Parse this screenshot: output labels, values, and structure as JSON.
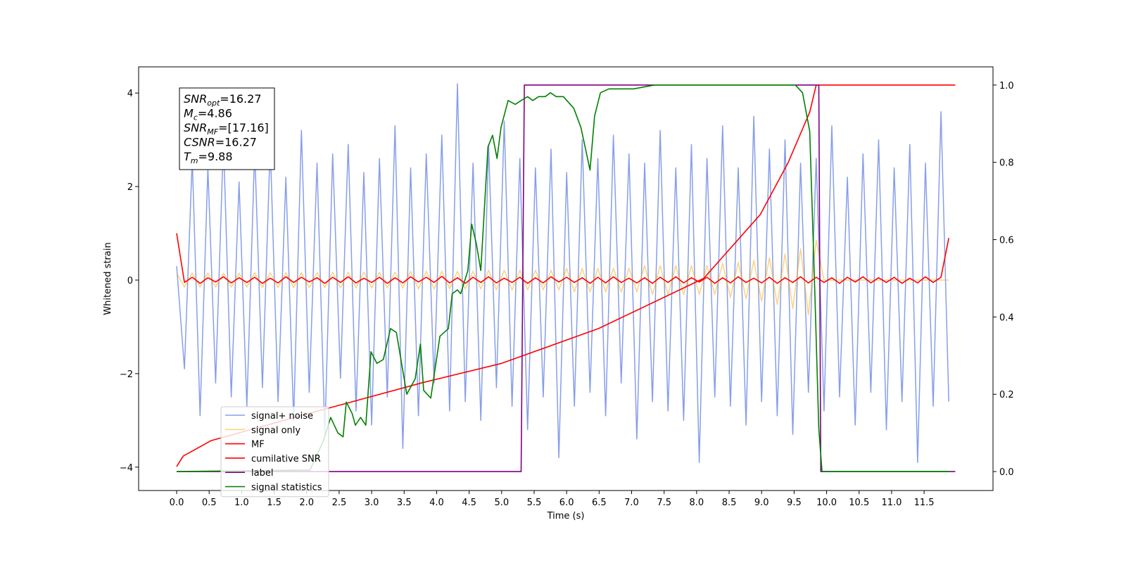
{
  "chart_data": {
    "type": "line",
    "xlabel": "Time (s)",
    "ylabel": "Whitened strain",
    "xlim": [
      -0.585,
      12.56
    ],
    "ylim": [
      -4.5,
      4.56
    ],
    "y2lim": [
      -0.049,
      1.047
    ],
    "xticks": [
      {
        "value": 0,
        "label": "0.0"
      },
      0.5,
      {
        "value": 1,
        "label": "1.0"
      },
      1.5,
      {
        "value": 2,
        "label": "2.0"
      },
      2.5,
      {
        "value": 3,
        "label": "3.0"
      },
      3.5,
      {
        "value": 4,
        "label": "4.0"
      },
      4.5,
      {
        "value": 5,
        "label": "5.0"
      },
      5.5,
      {
        "value": 6,
        "label": "6.0"
      },
      6.5,
      {
        "value": 7,
        "label": "7.0"
      },
      7.5,
      {
        "value": 8,
        "label": "8.0"
      },
      8.5,
      {
        "value": 9,
        "label": "9.0"
      },
      9.5,
      {
        "value": 10,
        "label": "10.0"
      },
      10.5,
      {
        "value": 11,
        "label": "11.0"
      },
      11.5
    ],
    "yticks": [
      {
        "value": -4,
        "label": "−4"
      },
      {
        "value": -2,
        "label": "−2"
      },
      0,
      2,
      4
    ],
    "y2ticks": [
      {
        "value": 0,
        "label": "0.0"
      },
      0.2,
      0.4,
      0.6,
      0.8,
      {
        "value": 1,
        "label": "1.0"
      }
    ],
    "legend_loc": "lower left",
    "annotations": [
      {
        "base": "SNR",
        "sub": "opt",
        "text": "=16.27"
      },
      {
        "base": "M",
        "sub": "c",
        "text": "=4.86"
      },
      {
        "base": "SNR",
        "sub": "MF",
        "text": "=[17.16]"
      },
      {
        "base": "CSNR",
        "sub": null,
        "text": "=16.27"
      },
      {
        "base": "T",
        "sub": "m",
        "text": "=9.88"
      }
    ],
    "x": [
      0,
      0.12,
      0.24,
      0.36,
      0.48,
      0.6,
      0.72,
      0.84,
      0.96,
      1.08,
      1.2,
      1.32,
      1.44,
      1.56,
      1.68,
      1.8,
      1.92,
      2.04,
      2.16,
      2.28,
      2.4,
      2.52,
      2.64,
      2.76,
      2.88,
      3,
      3.12,
      3.24,
      3.36,
      3.48,
      3.6,
      3.72,
      3.84,
      3.96,
      4.08,
      4.2,
      4.32,
      4.44,
      4.56,
      4.68,
      4.8,
      4.92,
      5.04,
      5.16,
      5.28,
      5.4,
      5.52,
      5.64,
      5.76,
      5.88,
      6,
      6.12,
      6.24,
      6.36,
      6.48,
      6.6,
      6.72,
      6.84,
      6.96,
      7.08,
      7.2,
      7.32,
      7.44,
      7.56,
      7.68,
      7.8,
      7.92,
      8.04,
      8.16,
      8.28,
      8.4,
      8.52,
      8.64,
      8.76,
      8.88,
      9,
      9.12,
      9.24,
      9.36,
      9.48,
      9.6,
      9.72,
      9.84,
      9.96,
      10.08,
      10.2,
      10.32,
      10.44,
      10.56,
      10.68,
      10.8,
      10.92,
      11.04,
      11.16,
      11.28,
      11.4,
      11.52,
      11.64,
      11.76,
      11.88
    ],
    "series": [
      {
        "name": "signal+ noise",
        "color": "#7a94e8",
        "values": [
          0.3,
          -1.9,
          2.6,
          -2.9,
          2.4,
          -2.2,
          3.0,
          -2.5,
          2.1,
          -2.7,
          2.8,
          -2.3,
          2.9,
          -2.6,
          2.2,
          -3.0,
          3.2,
          -2.4,
          2.5,
          -3.3,
          2.7,
          -2.1,
          2.9,
          -2.8,
          2.3,
          -3.1,
          2.6,
          -2.5,
          3.3,
          -3.6,
          2.4,
          -2.9,
          2.7,
          -2.2,
          3.1,
          -2.8,
          4.2,
          -2.6,
          2.5,
          -3.0,
          2.9,
          -2.3,
          3.4,
          -2.7,
          2.6,
          -3.2,
          2.4,
          -2.5,
          2.8,
          -3.8,
          2.3,
          -2.7,
          3.0,
          -2.4,
          2.6,
          -2.9,
          3.1,
          -2.2,
          2.7,
          -3.4,
          2.5,
          -2.6,
          3.2,
          -2.8,
          2.4,
          -3.0,
          2.9,
          -3.9,
          2.6,
          -2.5,
          3.3,
          -2.7,
          2.4,
          -3.1,
          3.5,
          -2.6,
          2.8,
          -2.9,
          3.0,
          -3.3,
          2.5,
          -2.4,
          2.6,
          -2.8,
          3.3,
          -2.5,
          2.2,
          -3.1,
          2.7,
          -2.4,
          3.0,
          -3.2,
          2.4,
          -2.6,
          2.9,
          -3.9,
          2.5,
          -2.7,
          3.6,
          -2.6
        ]
      },
      {
        "name": "signal only",
        "color": "#ffa500",
        "values": [
          0.15,
          -0.15,
          0.15,
          -0.15,
          0.15,
          -0.15,
          0.15,
          -0.15,
          0.15,
          -0.15,
          0.16,
          -0.16,
          0.16,
          -0.16,
          0.16,
          -0.16,
          0.16,
          -0.16,
          0.16,
          -0.16,
          0.17,
          -0.17,
          0.17,
          -0.17,
          0.17,
          -0.17,
          0.17,
          -0.17,
          0.17,
          -0.17,
          0.19,
          -0.19,
          0.19,
          -0.19,
          0.19,
          -0.19,
          0.19,
          -0.19,
          0.19,
          -0.19,
          0.21,
          -0.21,
          0.21,
          -0.21,
          0.21,
          -0.21,
          0.21,
          -0.21,
          0.21,
          -0.21,
          0.25,
          -0.25,
          0.25,
          -0.25,
          0.25,
          -0.25,
          0.25,
          -0.25,
          0.25,
          -0.25,
          0.31,
          -0.31,
          0.31,
          -0.31,
          0.31,
          -0.31,
          0.31,
          -0.31,
          0.31,
          -0.31,
          0.36,
          -0.37,
          0.38,
          -0.4,
          0.42,
          -0.45,
          0.48,
          -0.52,
          0.56,
          -0.61,
          0.67,
          -0.74,
          0.85,
          0,
          0,
          0,
          0,
          0,
          0,
          0,
          0,
          0,
          0,
          0,
          0,
          0,
          0,
          0,
          0,
          0
        ]
      },
      {
        "name": "MF",
        "color": "#ff0000",
        "values": [
          1.0,
          -0.05,
          0.06,
          -0.07,
          0.05,
          -0.04,
          0.07,
          -0.06,
          0.05,
          -0.05,
          0.06,
          -0.07,
          0.04,
          -0.06,
          0.07,
          -0.05,
          0.06,
          -0.04,
          0.05,
          -0.07,
          0.06,
          -0.05,
          0.07,
          -0.06,
          0.04,
          -0.05,
          0.06,
          -0.07,
          0.05,
          -0.06,
          0.07,
          -0.04,
          0.06,
          -0.05,
          0.08,
          -0.06,
          0.05,
          -0.07,
          0.06,
          -0.05,
          0.07,
          -0.06,
          0.04,
          -0.05,
          0.06,
          -0.07,
          0.05,
          -0.06,
          0.07,
          -0.04,
          0.06,
          -0.05,
          0.05,
          -0.07,
          0.06,
          -0.06,
          0.07,
          -0.05,
          0.04,
          -0.06,
          0.05,
          -0.07,
          0.06,
          -0.05,
          0.07,
          -0.06,
          0.05,
          -0.04,
          0.06,
          -0.07,
          0.05,
          -0.06,
          0.07,
          -0.05,
          0.04,
          -0.06,
          0.06,
          -0.07,
          0.05,
          -0.05,
          0.07,
          -0.06,
          0.06,
          -0.05,
          0.05,
          -0.07,
          0.06,
          -0.04,
          0.07,
          -0.06,
          0.05,
          -0.05,
          0.06,
          -0.07,
          0.04,
          -0.06,
          0.07,
          -0.05,
          0.06,
          0.9
        ]
      },
      {
        "name": "cumilative SNR",
        "color": "#ff0000",
        "axis": "y2",
        "x": [
          0,
          0.1,
          0.53,
          1.94,
          3.78,
          5.0,
          6.49,
          8.11,
          8.98,
          9.41,
          9.74,
          9.84,
          11.98
        ],
        "values": [
          0.013,
          0.04,
          0.08,
          0.146,
          0.23,
          0.28,
          0.37,
          0.5,
          0.665,
          0.8,
          0.93,
          1.0,
          1.0
        ]
      },
      {
        "name": "label",
        "color": "#800080",
        "axis": "y2",
        "x": [
          0,
          5.3,
          5.35,
          9.88,
          9.91,
          11.98
        ],
        "values": [
          0,
          0,
          1,
          1,
          0,
          0
        ]
      },
      {
        "name": "signal statistics",
        "color": "#008000",
        "axis": "y2",
        "x": [
          0,
          2.05,
          2.26,
          2.37,
          2.48,
          2.56,
          2.61,
          2.7,
          2.75,
          2.83,
          2.91,
          2.99,
          3.08,
          3.18,
          3.29,
          3.38,
          3.45,
          3.54,
          3.67,
          3.75,
          3.8,
          3.91,
          4.05,
          4.18,
          4.24,
          4.32,
          4.37,
          4.48,
          4.54,
          4.61,
          4.68,
          4.79,
          4.86,
          4.93,
          4.99,
          5.1,
          5.21,
          5.3,
          5.4,
          5.48,
          5.57,
          5.67,
          5.75,
          5.84,
          5.95,
          6.11,
          6.22,
          6.36,
          6.43,
          6.52,
          6.65,
          6.81,
          7.03,
          7.35,
          8.11,
          9.52,
          9.63,
          9.74,
          9.82,
          9.88,
          9.93,
          11.9
        ],
        "values": [
          0,
          0.004,
          0.08,
          0.14,
          0.1,
          0.09,
          0.18,
          0.15,
          0.12,
          0.14,
          0.12,
          0.31,
          0.28,
          0.29,
          0.37,
          0.36,
          0.29,
          0.2,
          0.24,
          0.33,
          0.21,
          0.19,
          0.35,
          0.37,
          0.46,
          0.47,
          0.46,
          0.52,
          0.64,
          0.59,
          0.52,
          0.84,
          0.87,
          0.81,
          0.89,
          0.96,
          0.95,
          0.96,
          0.97,
          0.96,
          0.97,
          0.97,
          0.98,
          0.97,
          0.97,
          0.94,
          0.89,
          0.78,
          0.92,
          0.98,
          0.99,
          0.99,
          0.99,
          1.0,
          1.0,
          1.0,
          0.98,
          0.88,
          0.46,
          0.11,
          0.0,
          0.0
        ]
      }
    ]
  }
}
